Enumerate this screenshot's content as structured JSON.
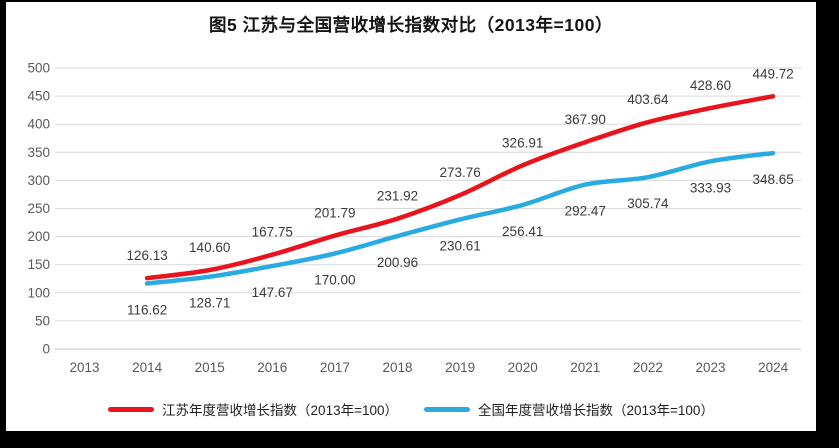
{
  "frame": {
    "background": "#000000",
    "page_background": "#ffffff"
  },
  "figure": {
    "title": "图5  江苏与全国营收增长指数对比（2013年=100）"
  },
  "chart_data": {
    "type": "line",
    "title": "图5  江苏与全国营收增长指数对比（2013年=100）",
    "x_categories": [
      "2013",
      "2014",
      "2015",
      "2016",
      "2017",
      "2018",
      "2019",
      "2020",
      "2021",
      "2022",
      "2023",
      "2024"
    ],
    "ylim": [
      0,
      500
    ],
    "ytick_step": 50,
    "grid": true,
    "legend_position": "bottom",
    "line_style": "smooth",
    "series": [
      {
        "key": "jiangsu",
        "name": "江苏年度营收增长指数（2013年=100）",
        "color": "#e8131d",
        "start_category": "2014",
        "label_position": "above",
        "values": [
          126.13,
          140.6,
          167.75,
          201.79,
          231.92,
          273.76,
          326.91,
          367.9,
          403.64,
          428.6,
          449.72
        ]
      },
      {
        "key": "national",
        "name": "全国年度营收增长指数（2013年=100）",
        "color": "#29abe2",
        "start_category": "2014",
        "label_position": "below",
        "values": [
          116.62,
          128.71,
          147.67,
          170.0,
          200.96,
          230.61,
          256.41,
          292.47,
          305.74,
          333.93,
          348.65
        ]
      }
    ],
    "colors": {
      "gridline": "#d9d9d9",
      "axis_line": "#c3c3c3",
      "tick_label": "#595959",
      "data_label": "#3a3a3a"
    }
  }
}
